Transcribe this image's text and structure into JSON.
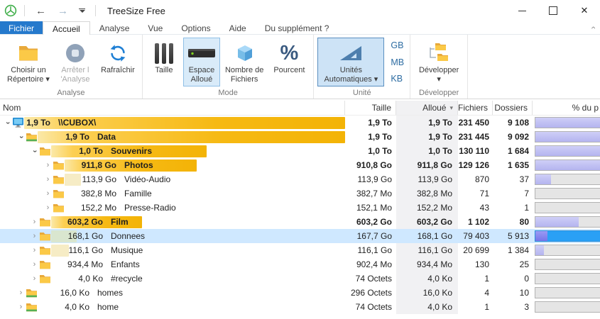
{
  "window": {
    "title": "TreeSize Free",
    "close_glyph": "✕"
  },
  "qat": {
    "back": "←",
    "forward": "→"
  },
  "tabs": [
    {
      "label": "Fichier"
    },
    {
      "label": "Accueil"
    },
    {
      "label": "Analyse"
    },
    {
      "label": "Vue"
    },
    {
      "label": "Options"
    },
    {
      "label": "Aide"
    },
    {
      "label": "Du supplément ?"
    }
  ],
  "ribbon": {
    "groups": [
      {
        "label": "Analyse",
        "buttons": [
          {
            "name": "choose-directory",
            "lines": [
              "Choisir un",
              "Répertoire ▾"
            ],
            "icon": "folder"
          },
          {
            "name": "stop-scan",
            "lines": [
              "Arrêter l",
              "'Analyse"
            ],
            "icon": "stop",
            "disabled": true
          },
          {
            "name": "refresh",
            "lines": [
              "Rafraîchir",
              ""
            ],
            "icon": "refresh"
          }
        ]
      },
      {
        "label": "Mode",
        "buttons": [
          {
            "name": "mode-size",
            "lines": [
              "Taille",
              ""
            ],
            "icon": "bars"
          },
          {
            "name": "mode-allocated",
            "lines": [
              "Espace",
              "Alloué"
            ],
            "icon": "drive",
            "selected": true
          },
          {
            "name": "mode-filecount",
            "lines": [
              "Nombre de",
              "Fichiers"
            ],
            "icon": "cube"
          },
          {
            "name": "mode-percent",
            "lines": [
              "Pourcent",
              ""
            ],
            "icon": "percent"
          }
        ]
      },
      {
        "label": "Unité",
        "buttons": [
          {
            "name": "auto-units",
            "lines": [
              "Unités",
              "Automatiques ▾"
            ],
            "icon": "triangle",
            "selected": true
          }
        ],
        "units": [
          "GB",
          "MB",
          "KB"
        ]
      },
      {
        "label": "Développer",
        "buttons": [
          {
            "name": "expand",
            "lines": [
              "Développer",
              "▾"
            ],
            "icon": "folders"
          }
        ]
      }
    ]
  },
  "table": {
    "columns": [
      "Nom",
      "Taille",
      "Alloué",
      "Fichiers",
      "Dossiers",
      "% du p"
    ],
    "sort_indicator": "▾",
    "rows": [
      {
        "level": 0,
        "expanded": true,
        "icon": "computer",
        "size": "1,9 To",
        "name": "\\\\CUBOX\\",
        "bold": true,
        "taille": "1,9 To",
        "alloue": "1,9 To",
        "fichiers": "231 450",
        "dossiers": "9 108",
        "bar": 100,
        "pct": 100,
        "selected": false
      },
      {
        "level": 1,
        "expanded": true,
        "icon": "folder-shared",
        "size": "1,9 To",
        "name": "Data",
        "bold": true,
        "taille": "1,9 To",
        "alloue": "1,9 To",
        "fichiers": "231 445",
        "dossiers": "9 092",
        "bar": 100,
        "pct": 100,
        "selected": false
      },
      {
        "level": 2,
        "expanded": true,
        "icon": "folder",
        "size": "1,0 To",
        "name": "Souvenirs",
        "bold": true,
        "taille": "1,0 To",
        "alloue": "1,0 To",
        "fichiers": "130 110",
        "dossiers": "1 684",
        "bar": 53,
        "pct": 55,
        "selected": false
      },
      {
        "level": 3,
        "expanded": false,
        "icon": "folder",
        "size": "911,8 Go",
        "name": "Photos",
        "bold": true,
        "taille": "910,8 Go",
        "alloue": "911,8 Go",
        "fichiers": "129 126",
        "dossiers": "1 635",
        "bar": 47,
        "pct": 89,
        "selected": false
      },
      {
        "level": 3,
        "expanded": false,
        "icon": "folder",
        "size": "113,9 Go",
        "name": "Vidéo-Audio",
        "bold": false,
        "taille": "113,9 Go",
        "alloue": "113,9 Go",
        "fichiers": "870",
        "dossiers": "37",
        "bar": 5.9,
        "pct": 11,
        "selected": false
      },
      {
        "level": 3,
        "expanded": false,
        "icon": "folder",
        "size": "382,8 Mo",
        "name": "Famille",
        "bold": false,
        "taille": "382,7 Mo",
        "alloue": "382,8 Mo",
        "fichiers": "71",
        "dossiers": "7",
        "bar": 0,
        "pct": 0,
        "selected": false
      },
      {
        "level": 3,
        "expanded": false,
        "icon": "folder",
        "size": "152,2 Mo",
        "name": "Presse-Radio",
        "bold": false,
        "taille": "152,1 Mo",
        "alloue": "152,2 Mo",
        "fichiers": "43",
        "dossiers": "1",
        "bar": 0,
        "pct": 0,
        "selected": false
      },
      {
        "level": 2,
        "expanded": false,
        "icon": "folder",
        "size": "603,2 Go",
        "name": "Film",
        "bold": true,
        "taille": "603,2 Go",
        "alloue": "603,2 Go",
        "fichiers": "1 102",
        "dossiers": "80",
        "bar": 31,
        "pct": 31,
        "selected": false
      },
      {
        "level": 2,
        "expanded": false,
        "icon": "folder",
        "size": "168,1 Go",
        "name": "Donnees",
        "bold": false,
        "taille": "167,7 Go",
        "alloue": "168,1 Go",
        "fichiers": "79 403",
        "dossiers": "5 913",
        "bar": 8.6,
        "pct": 8.6,
        "selected": true
      },
      {
        "level": 2,
        "expanded": false,
        "icon": "folder",
        "size": "116,1 Go",
        "name": "Musique",
        "bold": false,
        "taille": "116,1 Go",
        "alloue": "116,1 Go",
        "fichiers": "20 699",
        "dossiers": "1 384",
        "bar": 6,
        "pct": 6,
        "selected": false
      },
      {
        "level": 2,
        "expanded": false,
        "icon": "folder",
        "size": "934,4 Mo",
        "name": "Enfants",
        "bold": false,
        "taille": "902,4 Mo",
        "alloue": "934,4 Mo",
        "fichiers": "130",
        "dossiers": "25",
        "bar": 0,
        "pct": 0,
        "selected": false
      },
      {
        "level": 2,
        "expanded": false,
        "icon": "folder",
        "size": "4,0 Ko",
        "name": "#recycle",
        "bold": false,
        "taille": "74 Octets",
        "alloue": "4,0 Ko",
        "fichiers": "1",
        "dossiers": "0",
        "bar": 0,
        "pct": 0,
        "selected": false
      },
      {
        "level": 1,
        "expanded": false,
        "icon": "folder-shared",
        "size": "16,0 Ko",
        "name": "homes",
        "bold": false,
        "taille": "296 Octets",
        "alloue": "16,0 Ko",
        "fichiers": "4",
        "dossiers": "10",
        "bar": 0,
        "pct": 0,
        "selected": false
      },
      {
        "level": 1,
        "expanded": false,
        "icon": "folder-shared",
        "size": "4,0 Ko",
        "name": "home",
        "bold": false,
        "taille": "74 Octets",
        "alloue": "4,0 Ko",
        "fichiers": "1",
        "dossiers": "3",
        "bar": 0,
        "pct": 0,
        "selected": false
      }
    ]
  },
  "colors": {
    "accent_blue": "#2579cc",
    "selected_button_fill": "#cde3f6",
    "row_selection": "#cfe8ff",
    "bar_gold": "#f6b913",
    "bar_pale": "#f6ecc5",
    "percent_fill": "#b9b9f0",
    "selected_track_blue": "#2aa0f5"
  }
}
